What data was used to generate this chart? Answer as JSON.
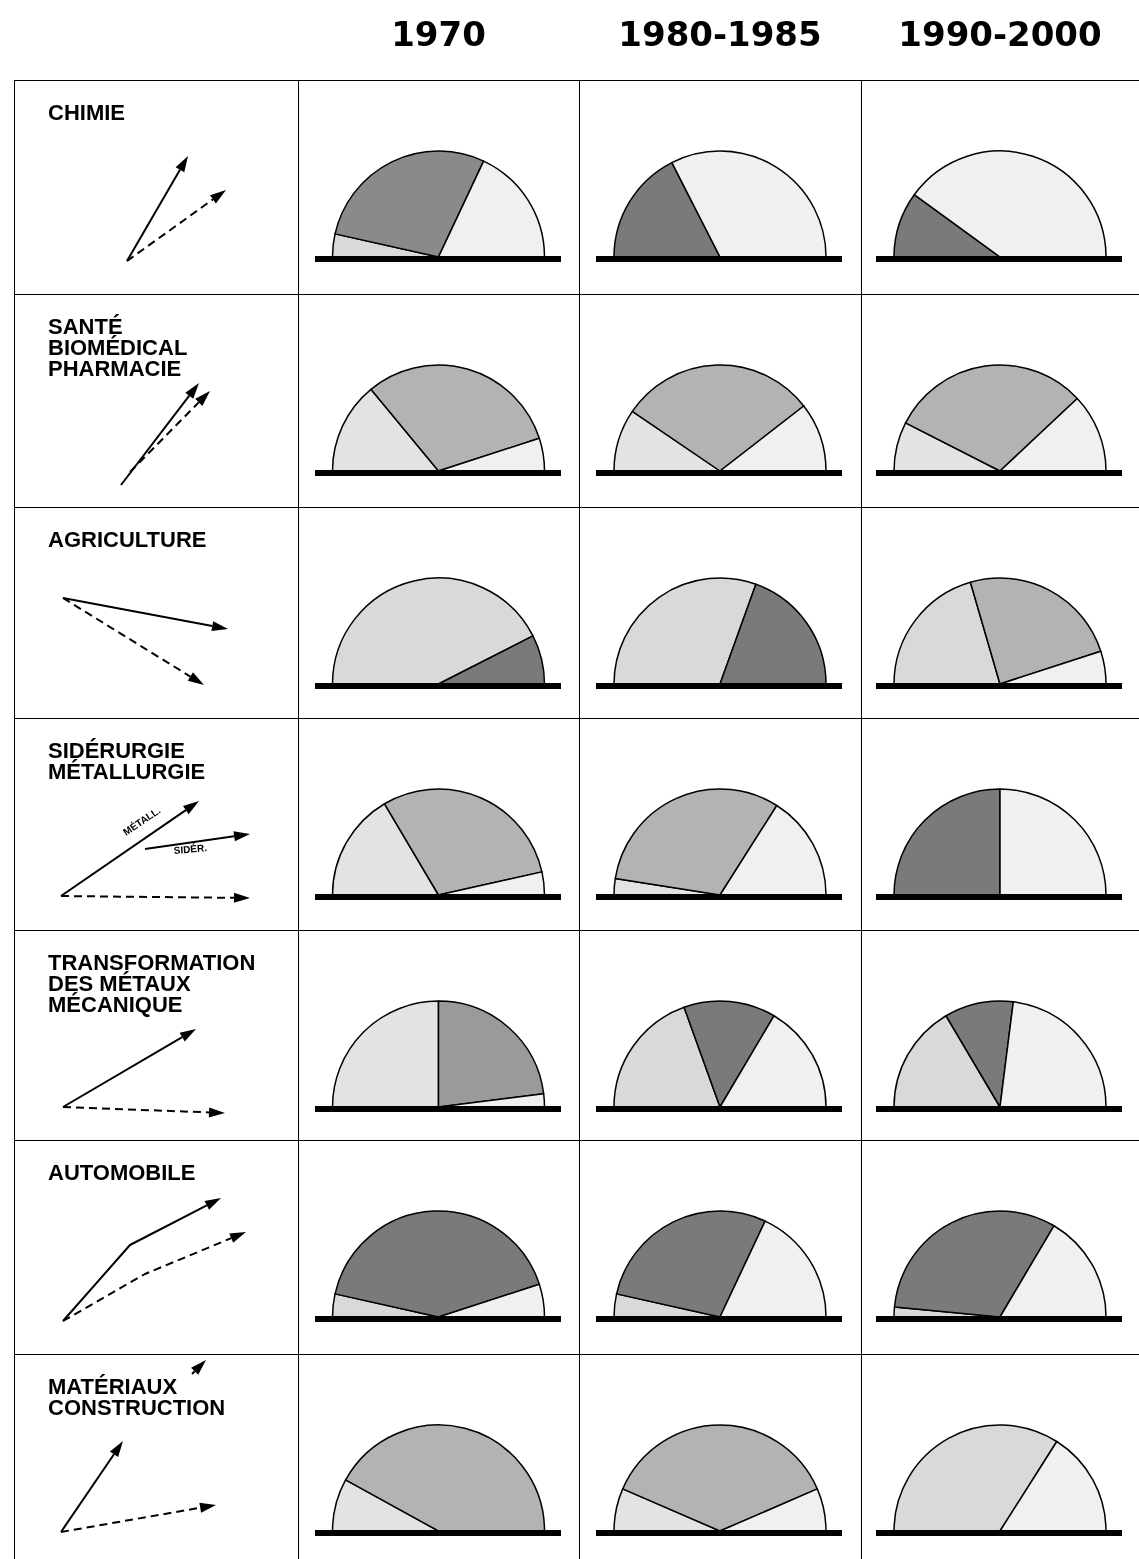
{
  "chart_data": [
    {
      "type": "other",
      "title": "CHIMIE"
    },
    {
      "type": "pie",
      "title": "1970",
      "categories": [
        null,
        null,
        null
      ],
      "values": [
        7,
        57,
        36
      ],
      "colors": [
        "#d9d9d9",
        "#8a8a8a",
        "#f0f0f0"
      ]
    },
    {
      "type": "pie",
      "title": "1980-1985",
      "categories": [
        null,
        null
      ],
      "values": [
        35,
        65
      ],
      "colors": [
        "#7a7a7a",
        "#f0f0f0"
      ]
    },
    {
      "type": "pie",
      "title": "1990-2000",
      "categories": [
        null,
        null
      ],
      "values": [
        20,
        80
      ],
      "colors": [
        "#7a7a7a",
        "#f0f0f0"
      ]
    },
    {
      "type": "other",
      "title": "SANTÉ\nBIOMÉDICAL\nPHARMACIE"
    },
    {
      "type": "pie",
      "categories": [
        null,
        null,
        null
      ],
      "values": [
        28,
        62,
        10
      ],
      "colors": [
        "#e3e3e3",
        "#b3b3b3",
        "#f0f0f0"
      ]
    },
    {
      "type": "pie",
      "categories": [
        null,
        null,
        null
      ],
      "values": [
        19,
        60,
        21
      ],
      "colors": [
        "#e3e3e3",
        "#b3b3b3",
        "#f0f0f0"
      ]
    },
    {
      "type": "pie",
      "categories": [
        null,
        null,
        null
      ],
      "values": [
        15,
        61,
        24
      ],
      "colors": [
        "#e3e3e3",
        "#b3b3b3",
        "#f0f0f0"
      ]
    },
    {
      "type": "other",
      "title": "AGRICULTURE"
    },
    {
      "type": "pie",
      "categories": [
        null,
        null
      ],
      "values": [
        85,
        15
      ],
      "colors": [
        "#d9d9d9",
        "#7a7a7a"
      ]
    },
    {
      "type": "pie",
      "categories": [
        null,
        null
      ],
      "values": [
        61,
        39
      ],
      "colors": [
        "#d9d9d9",
        "#7a7a7a"
      ]
    },
    {
      "type": "pie",
      "categories": [
        null,
        null,
        null
      ],
      "values": [
        41,
        49,
        10
      ],
      "colors": [
        "#d9d9d9",
        "#b3b3b3",
        "#f0f0f0"
      ]
    },
    {
      "type": "other",
      "title": "SIDÉRURGIE\nMÉTALLURGIE",
      "annotations": [
        "MÉTALL.",
        "SIDÉR."
      ]
    },
    {
      "type": "pie",
      "categories": [
        null,
        null,
        null
      ],
      "values": [
        33,
        60,
        7
      ],
      "colors": [
        "#e3e3e3",
        "#b3b3b3",
        "#f0f0f0"
      ]
    },
    {
      "type": "pie",
      "categories": [
        null,
        null,
        null
      ],
      "values": [
        5,
        63,
        32
      ],
      "colors": [
        "#e3e3e3",
        "#b3b3b3",
        "#f0f0f0"
      ]
    },
    {
      "type": "pie",
      "categories": [
        null,
        null
      ],
      "values": [
        50,
        50
      ],
      "colors": [
        "#7a7a7a",
        "#f0f0f0"
      ]
    },
    {
      "type": "other",
      "title": "TRANSFORMATION\nDES MÉTAUX\nMÉCANIQUE"
    },
    {
      "type": "pie",
      "categories": [
        null,
        null,
        null
      ],
      "values": [
        50,
        46,
        4
      ],
      "colors": [
        "#e3e3e3",
        "#9a9a9a",
        "#f0f0f0"
      ]
    },
    {
      "type": "pie",
      "categories": [
        null,
        null,
        null
      ],
      "values": [
        39,
        28,
        33
      ],
      "colors": [
        "#d9d9d9",
        "#7a7a7a",
        "#f0f0f0"
      ]
    },
    {
      "type": "pie",
      "categories": [
        null,
        null,
        null
      ],
      "values": [
        33,
        21,
        46
      ],
      "colors": [
        "#d9d9d9",
        "#7a7a7a",
        "#f0f0f0"
      ]
    },
    {
      "type": "other",
      "title": "AUTOMOBILE"
    },
    {
      "type": "pie",
      "categories": [
        null,
        null,
        null
      ],
      "values": [
        7,
        83,
        10
      ],
      "colors": [
        "#d9d9d9",
        "#7a7a7a",
        "#f0f0f0"
      ]
    },
    {
      "type": "pie",
      "categories": [
        null,
        null,
        null
      ],
      "values": [
        7,
        57,
        36
      ],
      "colors": [
        "#d9d9d9",
        "#7a7a7a",
        "#f0f0f0"
      ]
    },
    {
      "type": "pie",
      "categories": [
        null,
        null,
        null
      ],
      "values": [
        3,
        64,
        33
      ],
      "colors": [
        "#d9d9d9",
        "#7a7a7a",
        "#f0f0f0"
      ]
    },
    {
      "type": "other",
      "title": "MATÉRIAUX\nCONSTRUCTION"
    },
    {
      "type": "pie",
      "categories": [
        null,
        null
      ],
      "values": [
        16,
        84
      ],
      "colors": [
        "#e3e3e3",
        "#b3b3b3"
      ]
    },
    {
      "type": "pie",
      "categories": [
        null,
        null,
        null
      ],
      "values": [
        13,
        74,
        13
      ],
      "colors": [
        "#e3e3e3",
        "#b3b3b3",
        "#f0f0f0"
      ]
    },
    {
      "type": "pie",
      "categories": [
        null,
        null
      ],
      "values": [
        68,
        32
      ],
      "colors": [
        "#d9d9d9",
        "#f0f0f0"
      ]
    }
  ]
}
